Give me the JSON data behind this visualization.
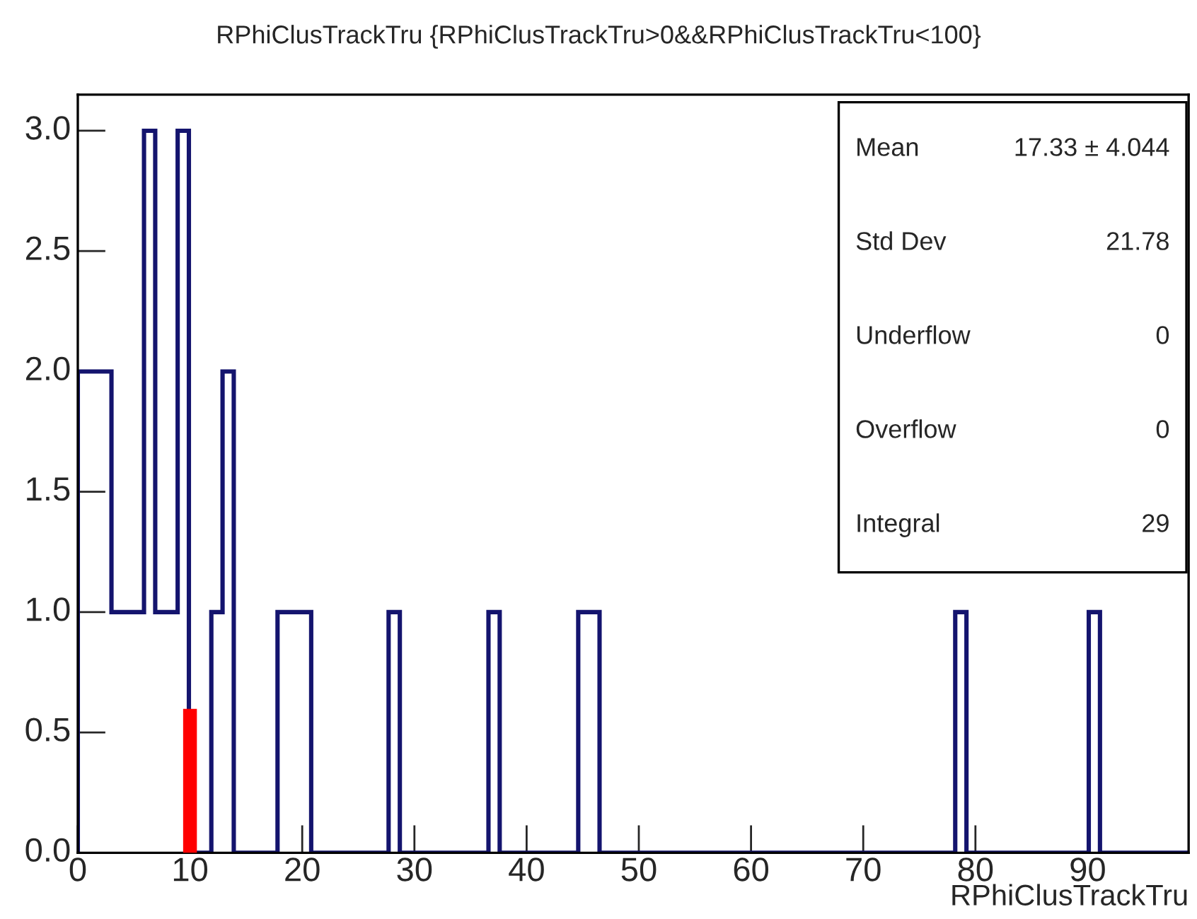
{
  "chart_data": {
    "type": "histogram",
    "title": "RPhiClusTrackTru {RPhiClusTrackTru>0&&RPhiClusTrackTru<100}",
    "xlabel": "RPhiClusTrackTru",
    "bins": [
      0,
      3,
      5.9,
      6.9,
      8.9,
      9.9,
      11.9,
      12.9,
      13.9,
      17.8,
      20.8,
      27.7,
      28.7,
      36.6,
      37.6,
      44.6,
      46.5,
      78.2,
      79.2,
      90.1,
      91.1,
      99
    ],
    "values": [
      2,
      1,
      3,
      1,
      3,
      0,
      1,
      2,
      0,
      1,
      0,
      1,
      0,
      1,
      0,
      1,
      0,
      1,
      0,
      1,
      0
    ],
    "color": "#14146e",
    "xlim": [
      0,
      99
    ],
    "xticks": [
      0,
      10,
      20,
      30,
      40,
      50,
      60,
      70,
      80,
      90
    ],
    "ylim": [
      0,
      3.15
    ],
    "yticks": [
      {
        "value": 0,
        "label": "0.0"
      },
      {
        "value": 0.5,
        "label": "0.5"
      },
      {
        "value": 1,
        "label": "1.0"
      },
      {
        "value": 1.5,
        "label": "1.5"
      },
      {
        "value": 2,
        "label": "2.0"
      },
      {
        "value": 2.5,
        "label": "2.5"
      },
      {
        "value": 3,
        "label": "3.0"
      }
    ],
    "ref_lines": [
      {
        "axis": "x",
        "value": 10,
        "color": "#ff0000"
      }
    ],
    "annotations": [
      "Mean",
      "17.33 ± 4.044",
      "Std Dev",
      "21.78",
      "Underflow",
      "0",
      "Overflow",
      "0",
      "Integral",
      "29"
    ],
    "grid": false,
    "legend": false
  }
}
